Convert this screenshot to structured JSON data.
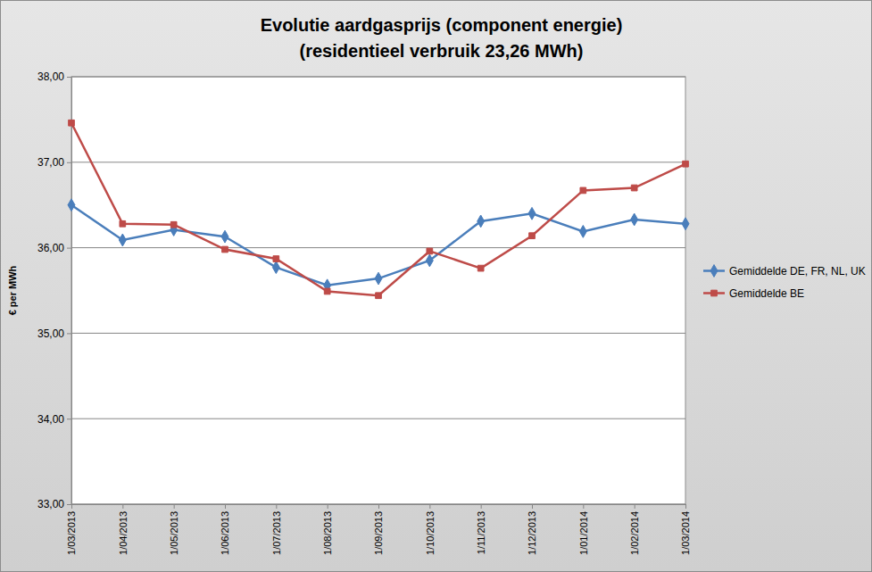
{
  "chart_data": {
    "type": "line",
    "title": "Evolutie aardgasprijs (component energie)",
    "subtitle": "(residentieel verbruik 23,26 MWh)",
    "y_label": "€ per MWh",
    "categories": [
      "1/03/2013",
      "1/04/2013",
      "1/05/2013",
      "1/06/2013",
      "1/07/2013",
      "1/08/2013",
      "1/09/2013",
      "1/10/2013",
      "1/11/2013",
      "1/12/2013",
      "1/01/2014",
      "1/02/2014",
      "1/03/2014"
    ],
    "series": [
      {
        "name": "Gemiddelde DE, FR, NL, UK",
        "color": "#4a7ebb",
        "marker": "diamond",
        "values": [
          36.5,
          36.09,
          36.21,
          36.13,
          35.77,
          35.56,
          35.64,
          35.85,
          36.31,
          36.4,
          36.19,
          36.33,
          36.28
        ]
      },
      {
        "name": "Gemiddelde BE",
        "color": "#be4b48",
        "marker": "square",
        "values": [
          37.46,
          36.28,
          36.27,
          35.98,
          35.87,
          35.49,
          35.44,
          35.96,
          35.76,
          36.14,
          36.67,
          36.7,
          36.98
        ]
      }
    ],
    "ylim": [
      33,
      38
    ],
    "yticks": [
      {
        "value": 33,
        "label": "33,00"
      },
      {
        "value": 34,
        "label": "34,00"
      },
      {
        "value": 35,
        "label": "35,00"
      },
      {
        "value": 36,
        "label": "36,00"
      },
      {
        "value": 37,
        "label": "37,00"
      },
      {
        "value": 38,
        "label": "38,00"
      }
    ],
    "grid": true,
    "legend": "right"
  }
}
